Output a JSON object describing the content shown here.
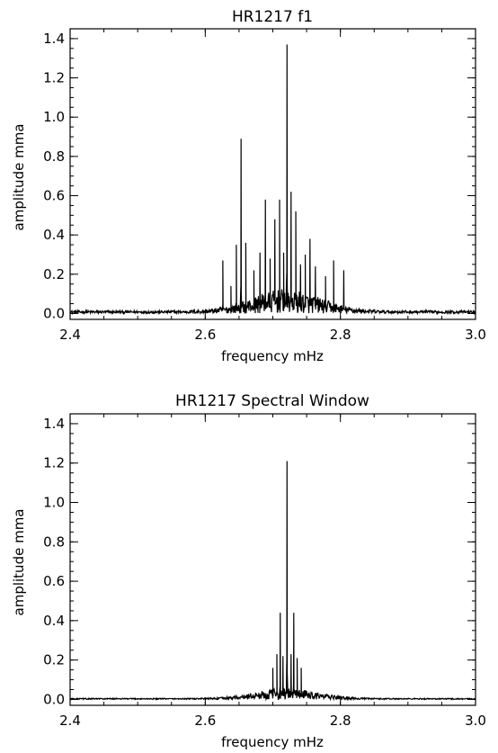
{
  "chart_data": [
    {
      "type": "line",
      "title": "HR1217 f1",
      "xlabel": "frequency mHz",
      "ylabel": "amplitude mma",
      "xlim": [
        2.4,
        3.0
      ],
      "ylim": [
        -0.03,
        1.45
      ],
      "xticks": [
        "2.4",
        "2.6",
        "2.8",
        "3.0"
      ],
      "yticks": [
        "0.0",
        "0.2",
        "0.4",
        "0.6",
        "0.8",
        "1.0",
        "1.2",
        "1.4"
      ],
      "grid": false,
      "line_color": "#000000",
      "noise_envelope": {
        "floor": 0.015,
        "peak_center": 2.72,
        "peak_amplitude": 0.11,
        "width": 0.05
      },
      "peaks": [
        {
          "x": 2.626,
          "y": 0.27
        },
        {
          "x": 2.638,
          "y": 0.14
        },
        {
          "x": 2.646,
          "y": 0.35
        },
        {
          "x": 2.653,
          "y": 0.89
        },
        {
          "x": 2.66,
          "y": 0.36
        },
        {
          "x": 2.672,
          "y": 0.22
        },
        {
          "x": 2.681,
          "y": 0.31
        },
        {
          "x": 2.689,
          "y": 0.58
        },
        {
          "x": 2.696,
          "y": 0.28
        },
        {
          "x": 2.703,
          "y": 0.48
        },
        {
          "x": 2.71,
          "y": 0.58
        },
        {
          "x": 2.716,
          "y": 0.31
        },
        {
          "x": 2.721,
          "y": 1.37
        },
        {
          "x": 2.727,
          "y": 0.62
        },
        {
          "x": 2.734,
          "y": 0.52
        },
        {
          "x": 2.741,
          "y": 0.25
        },
        {
          "x": 2.748,
          "y": 0.3
        },
        {
          "x": 2.755,
          "y": 0.38
        },
        {
          "x": 2.763,
          "y": 0.24
        },
        {
          "x": 2.778,
          "y": 0.19
        },
        {
          "x": 2.79,
          "y": 0.27
        },
        {
          "x": 2.805,
          "y": 0.22
        }
      ]
    },
    {
      "type": "line",
      "title": "HR1217 Spectral Window",
      "xlabel": "frequency mHz",
      "ylabel": "amplitude mma",
      "xlim": [
        2.4,
        3.0
      ],
      "ylim": [
        -0.03,
        1.45
      ],
      "xticks": [
        "2.4",
        "2.6",
        "2.8",
        "3.0"
      ],
      "yticks": [
        "0.0",
        "0.2",
        "0.4",
        "0.6",
        "0.8",
        "1.0",
        "1.2",
        "1.4"
      ],
      "grid": false,
      "line_color": "#000000",
      "noise_envelope": {
        "floor": 0.006,
        "peak_center": 2.72,
        "peak_amplitude": 0.05,
        "width": 0.045
      },
      "peaks": [
        {
          "x": 2.7,
          "y": 0.16
        },
        {
          "x": 2.706,
          "y": 0.23
        },
        {
          "x": 2.711,
          "y": 0.44
        },
        {
          "x": 2.715,
          "y": 0.22
        },
        {
          "x": 2.721,
          "y": 1.21
        },
        {
          "x": 2.727,
          "y": 0.23
        },
        {
          "x": 2.731,
          "y": 0.44
        },
        {
          "x": 2.736,
          "y": 0.21
        },
        {
          "x": 2.742,
          "y": 0.16
        }
      ]
    }
  ]
}
